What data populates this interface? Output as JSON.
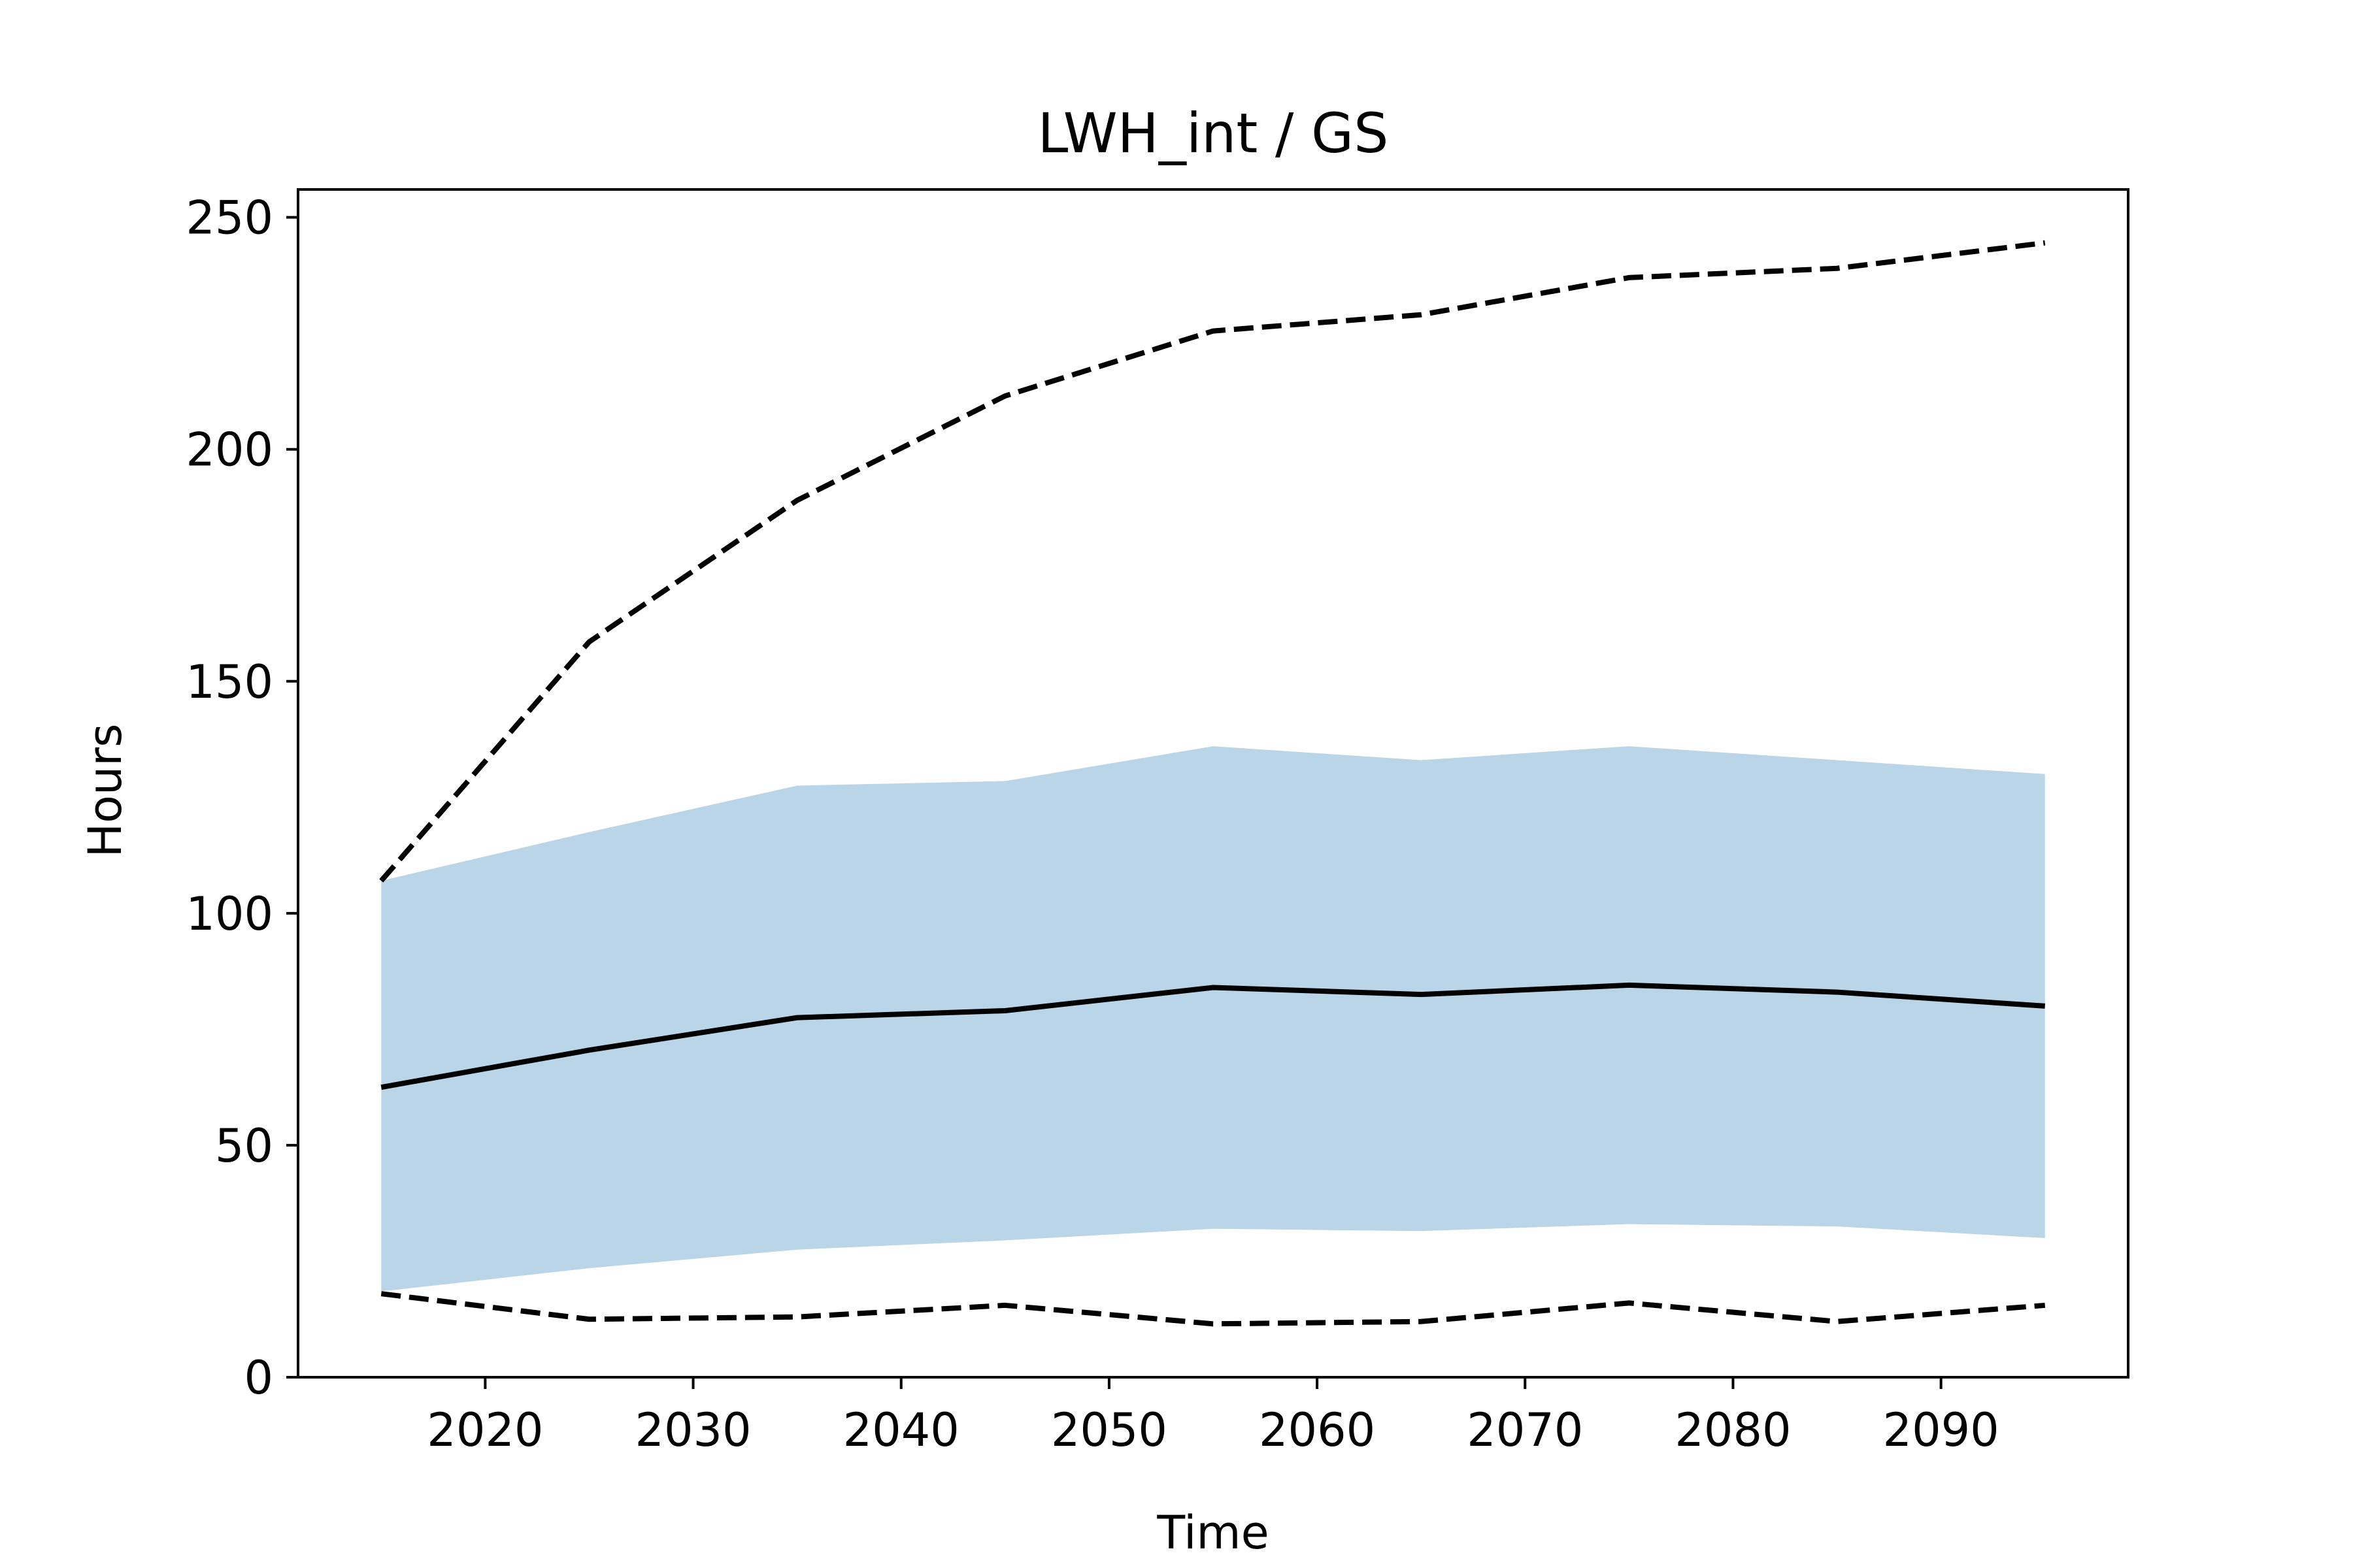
{
  "chart_data": {
    "type": "line",
    "title": "LWH_int / GS",
    "xlabel": "Time",
    "ylabel": "Hours",
    "xlim": [
      2011,
      2099
    ],
    "ylim": [
      0,
      256
    ],
    "xticks": [
      2020,
      2030,
      2040,
      2050,
      2060,
      2070,
      2080,
      2090
    ],
    "yticks": [
      0,
      50,
      100,
      150,
      200,
      250
    ],
    "grid": false,
    "x": [
      2015,
      2025,
      2035,
      2045,
      2055,
      2065,
      2075,
      2085,
      2095
    ],
    "series": [
      {
        "style": "solid",
        "values": [
          62.5,
          70.5,
          77.5,
          79,
          84,
          82.5,
          84.5,
          83,
          80
        ]
      },
      {
        "style": "dashed",
        "values": [
          107,
          158.5,
          189,
          211.5,
          225.5,
          229,
          237,
          239,
          244.5
        ]
      },
      {
        "style": "dashed",
        "values": [
          18,
          12.5,
          13,
          15.5,
          11.5,
          12,
          16,
          12,
          15.5
        ]
      }
    ],
    "band": {
      "upper": [
        107,
        117.5,
        127.5,
        128.5,
        136,
        133,
        136,
        133,
        130
      ],
      "lower": [
        18.5,
        23.5,
        27.5,
        29.5,
        32,
        31.5,
        33,
        32.5,
        30
      ]
    },
    "colors": {
      "band": "#bad5e7",
      "line": "#000000"
    }
  }
}
